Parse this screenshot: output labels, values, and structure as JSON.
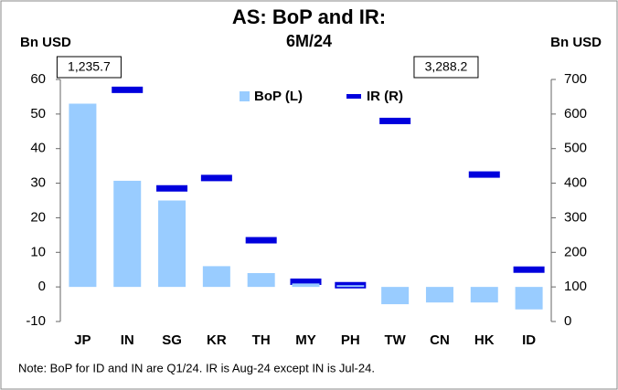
{
  "chart_data": {
    "type": "bar_line",
    "title": "AS: BoP and IR:",
    "subtitle": "6M/24",
    "y_label": "Bn USD",
    "y2_label": "Bn USD",
    "categories": [
      "JP",
      "IN",
      "SG",
      "KR",
      "TH",
      "MY",
      "PH",
      "TW",
      "CN",
      "HK",
      "ID"
    ],
    "series": [
      {
        "name": "BoP (L)",
        "type": "bar",
        "color": "#99ccff",
        "values": [
          53,
          30.7,
          25,
          6,
          4,
          1,
          0.5,
          -5,
          -4.5,
          -4.5,
          -6.5
        ]
      },
      {
        "name": "IR (R)",
        "type": "dash",
        "axis": "y2",
        "color": "#0000dd",
        "values": [
          1235.7,
          670,
          385,
          415,
          235,
          115,
          105,
          580,
          3288.2,
          425,
          150
        ],
        "value_labels": [
          "1,235.7",
          null,
          null,
          null,
          null,
          null,
          null,
          null,
          "3,288.2",
          null,
          null
        ]
      }
    ],
    "ylim": [
      -10,
      60
    ],
    "yticks": [
      -10,
      0,
      10,
      20,
      30,
      40,
      50,
      60
    ],
    "y2lim": [
      0,
      700
    ],
    "y2ticks": [
      0,
      100,
      200,
      300,
      400,
      500,
      600,
      700
    ],
    "legend": "top",
    "note": "Note: BoP for ID and IN are Q1/24. IR is Aug-24 except IN is Jul-24."
  }
}
